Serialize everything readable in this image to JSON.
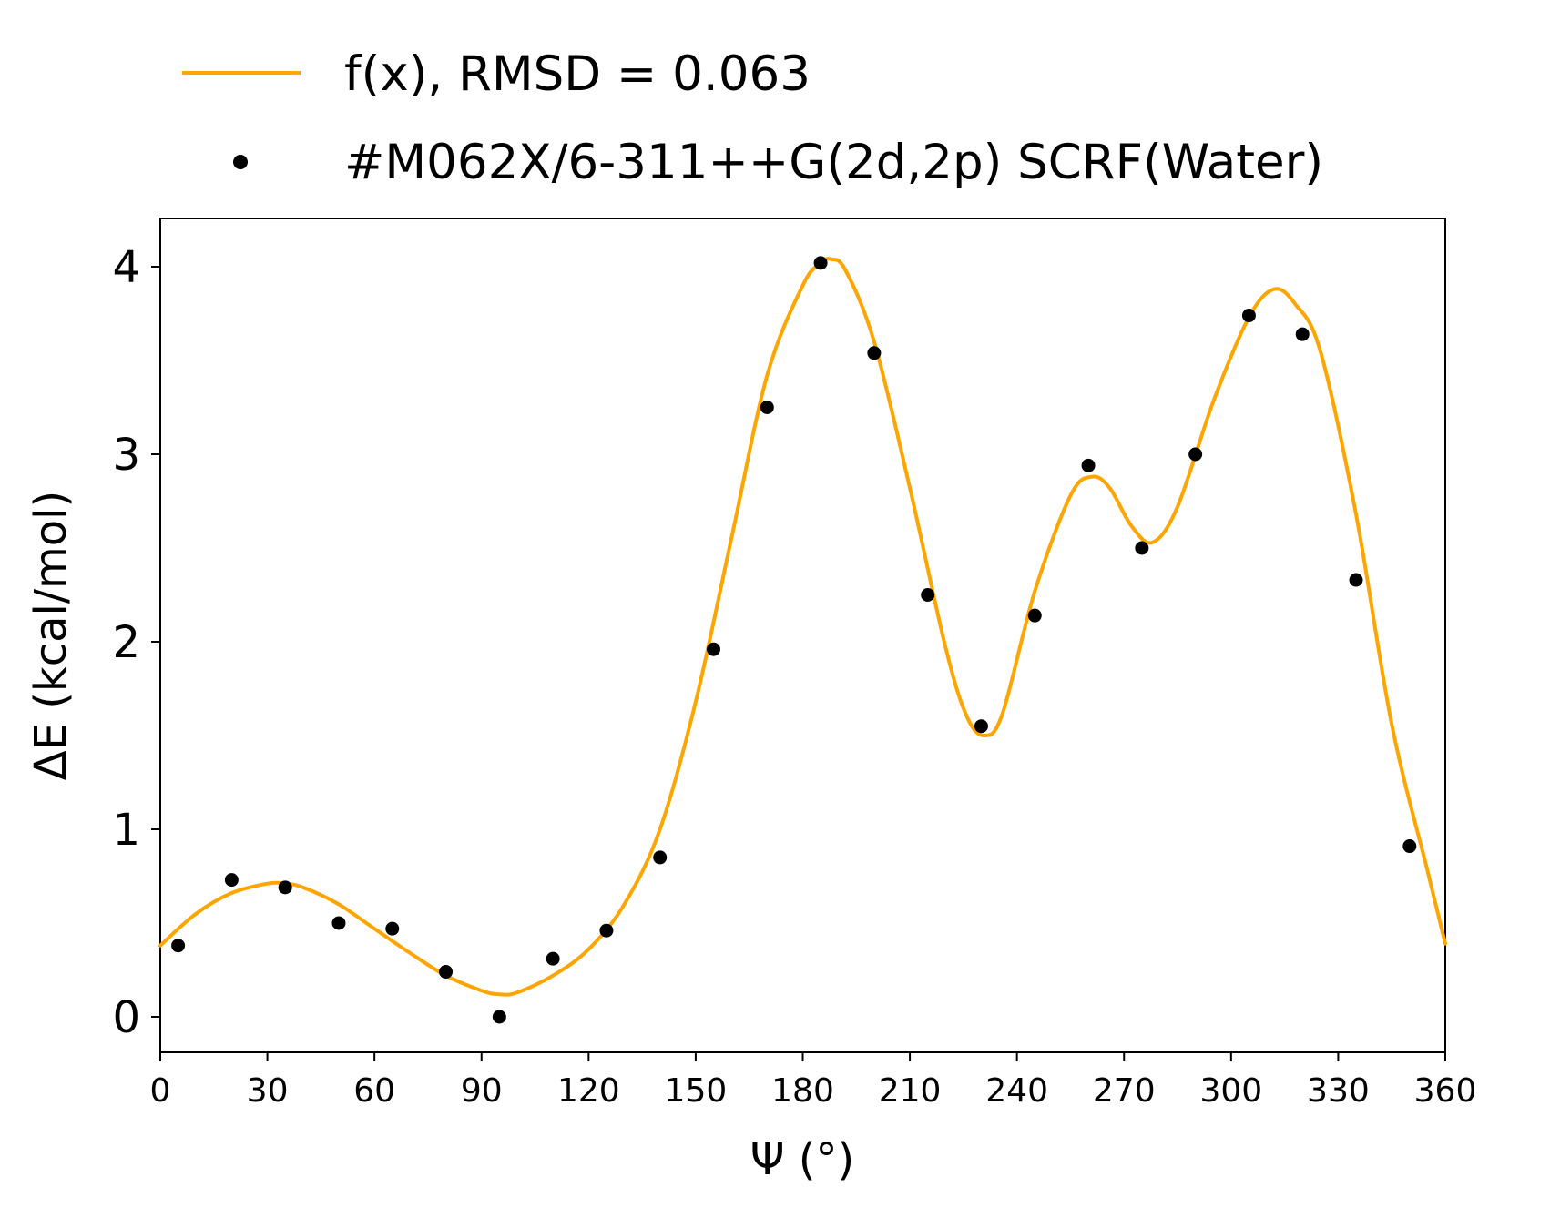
{
  "chart_data": {
    "type": "line",
    "xlabel": "Ψ (°)",
    "ylabel": "ΔE (kcal/mol)",
    "xlim": [
      0,
      360
    ],
    "ylim": [
      -0.2,
      4.25
    ],
    "x_ticks": [
      0,
      30,
      60,
      90,
      120,
      150,
      180,
      210,
      240,
      270,
      300,
      330,
      360
    ],
    "x_tick_labels": [
      "0",
      "30",
      "60",
      "90",
      "120",
      "150",
      "180",
      "210",
      "240",
      "270",
      "300",
      "330",
      "360"
    ],
    "y_ticks": [
      0,
      1,
      2,
      3,
      4
    ],
    "y_tick_labels": [
      "0",
      "1",
      "2",
      "3",
      "4"
    ],
    "grid": false,
    "legend_position": "top, above plot",
    "series": [
      {
        "name": "f(x), RMSD = 0.063",
        "type": "line",
        "color": "#FFA500",
        "x": [
          0,
          10,
          20,
          30,
          35,
          40,
          50,
          60,
          70,
          80,
          90,
          95,
          100,
          110,
          120,
          130,
          140,
          150,
          160,
          170,
          180,
          185,
          188,
          192,
          200,
          210,
          220,
          226,
          231,
          236,
          245,
          255,
          261,
          266,
          272,
          278,
          285,
          295,
          305,
          312,
          318,
          325,
          335,
          345,
          355,
          360
        ],
        "y": [
          0.38,
          0.55,
          0.66,
          0.71,
          0.71,
          0.69,
          0.6,
          0.47,
          0.34,
          0.22,
          0.14,
          0.12,
          0.13,
          0.22,
          0.36,
          0.6,
          1.0,
          1.68,
          2.55,
          3.42,
          3.9,
          4.02,
          4.04,
          3.98,
          3.6,
          2.82,
          1.97,
          1.6,
          1.5,
          1.62,
          2.27,
          2.78,
          2.88,
          2.82,
          2.62,
          2.53,
          2.72,
          3.28,
          3.73,
          3.88,
          3.8,
          3.55,
          2.68,
          1.56,
          0.78,
          0.39
        ]
      },
      {
        "name": "#M062X/6-311++G(2d,2p) SCRF(Water)",
        "type": "scatter",
        "color": "#000000",
        "x": [
          5,
          20,
          35,
          50,
          65,
          80,
          95,
          110,
          125,
          140,
          155,
          170,
          185,
          200,
          215,
          230,
          245,
          260,
          275,
          290,
          305,
          320,
          335,
          350
        ],
        "y": [
          0.38,
          0.73,
          0.69,
          0.5,
          0.47,
          0.24,
          0.0,
          0.31,
          0.46,
          0.85,
          1.96,
          3.25,
          4.02,
          3.54,
          2.25,
          1.55,
          2.14,
          2.94,
          2.5,
          3.0,
          3.74,
          3.64,
          2.33,
          0.91
        ]
      }
    ]
  }
}
